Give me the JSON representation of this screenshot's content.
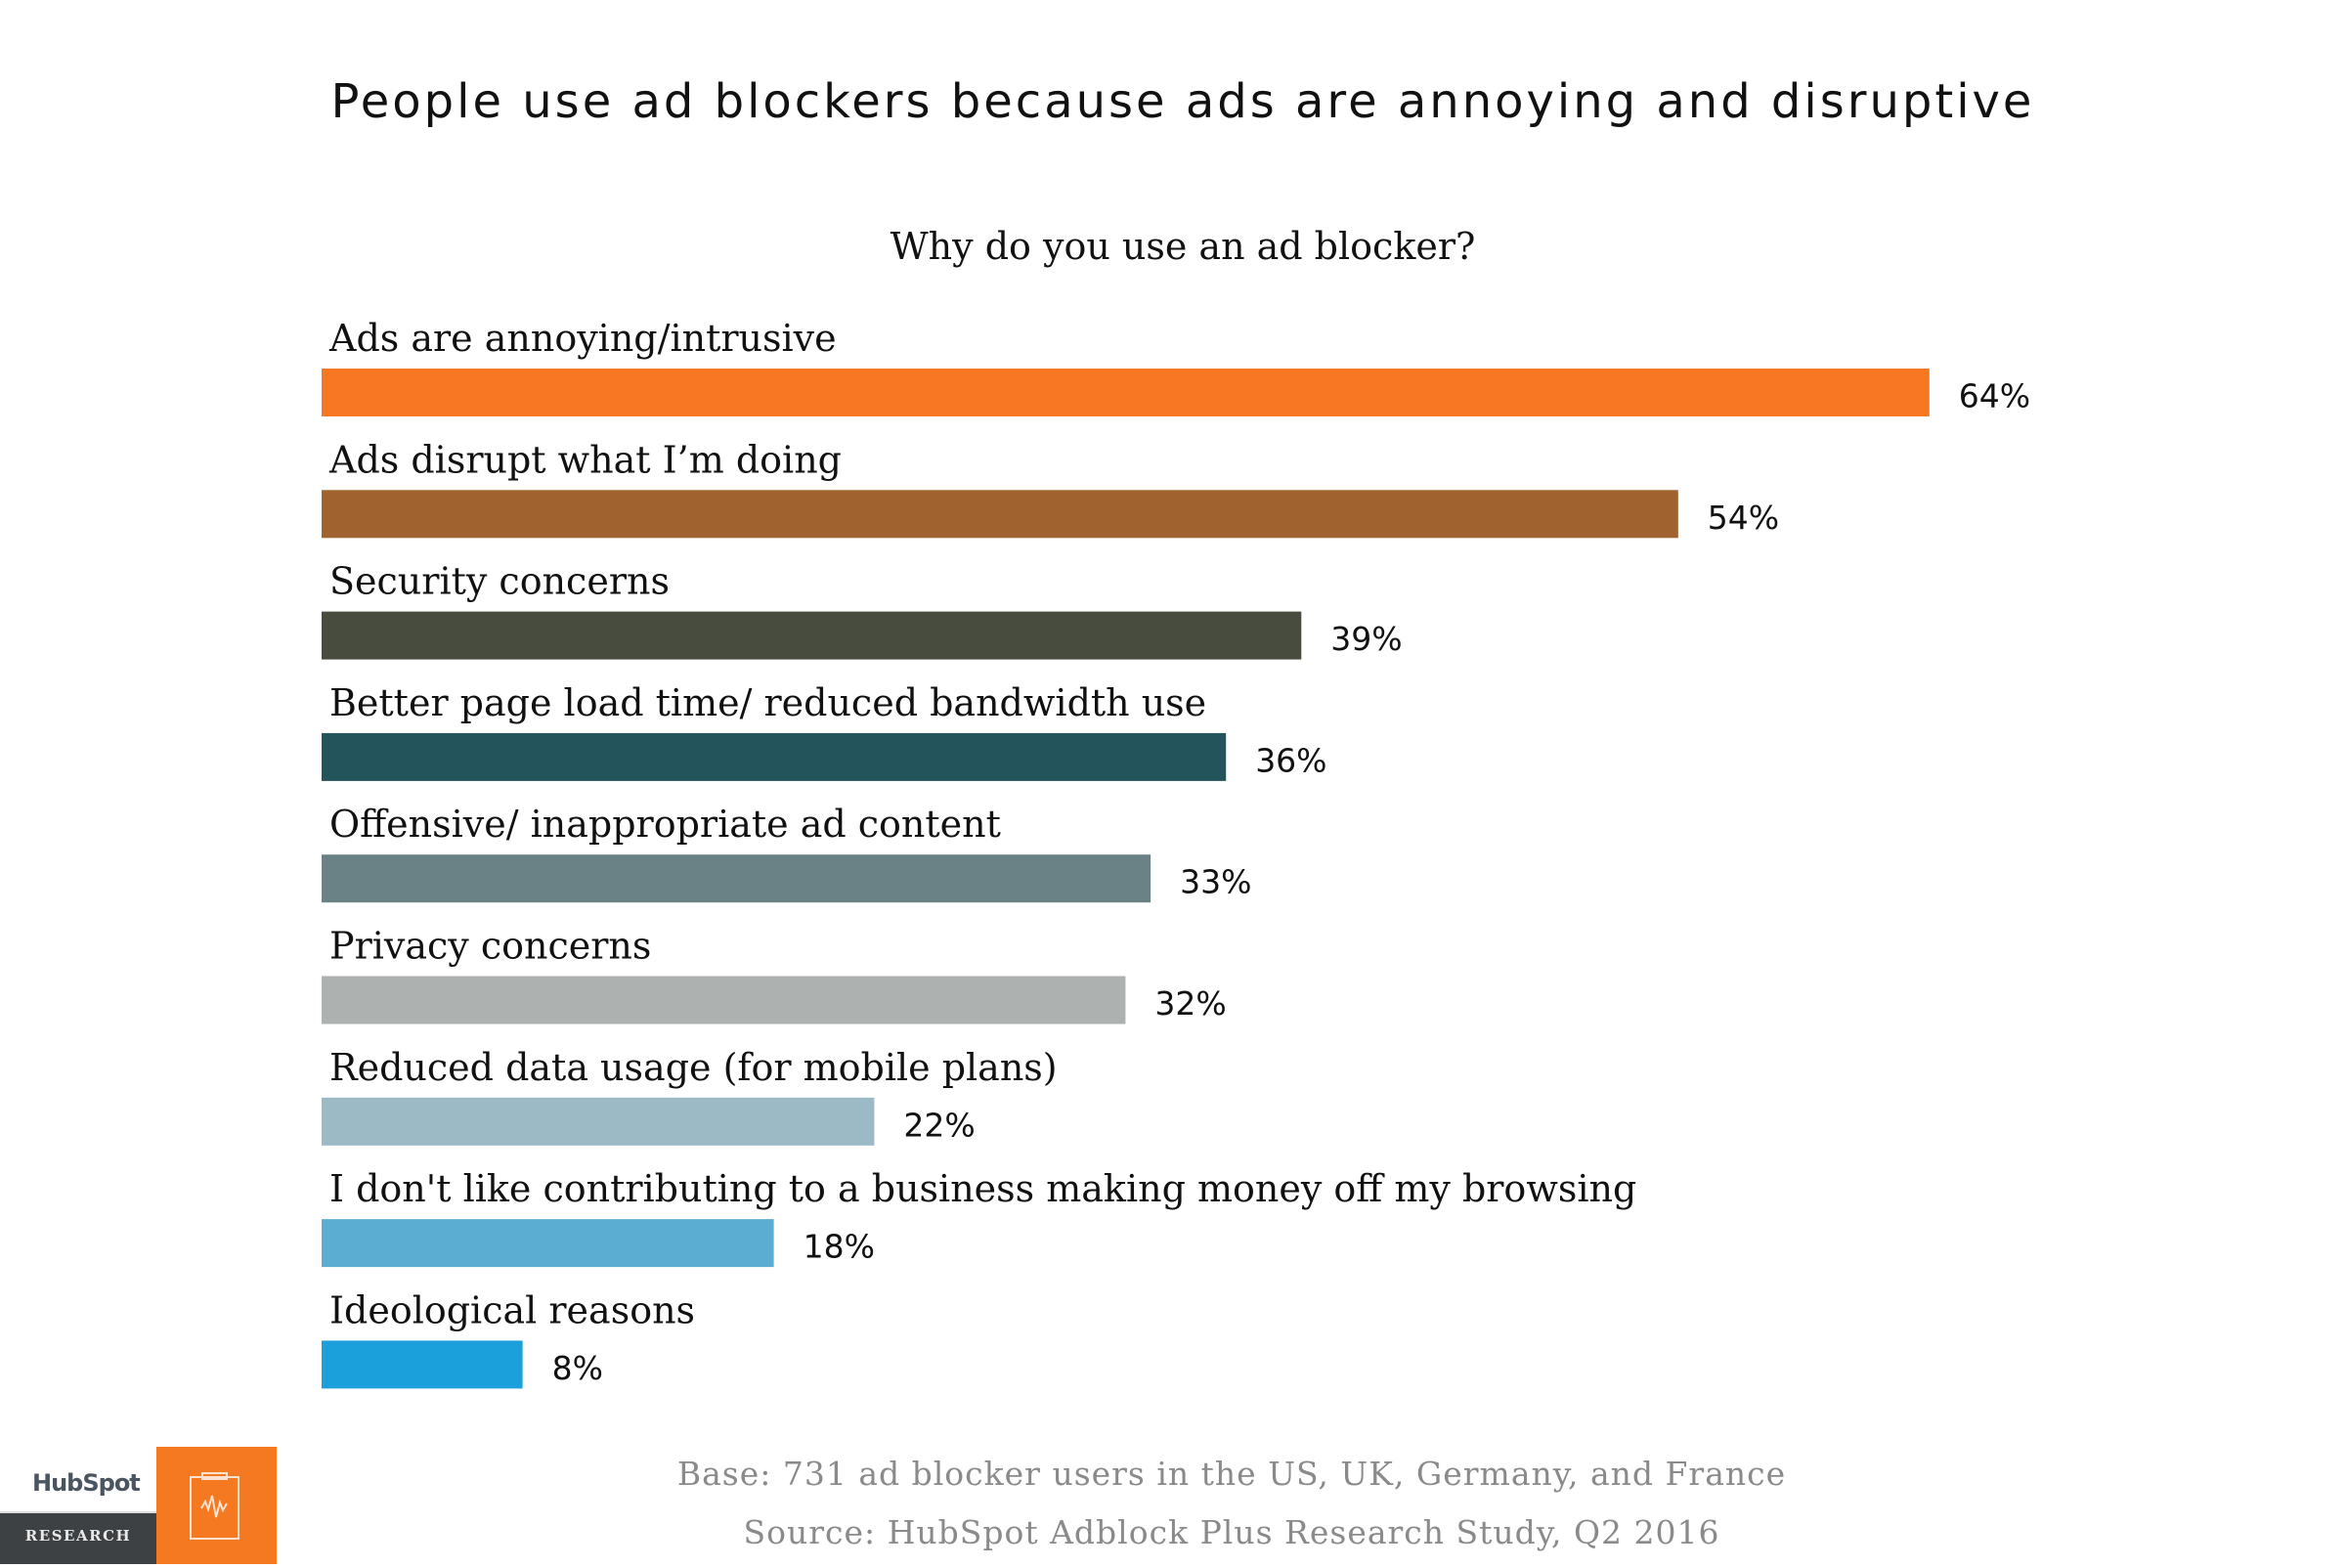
{
  "chart_data": {
    "type": "bar",
    "orientation": "horizontal",
    "title": "People use ad blockers because ads are annoying and disruptive",
    "subtitle": "Why do you use an ad blocker?",
    "categories": [
      "Ads are annoying/intrusive",
      "Ads disrupt what I’m doing",
      "Security concerns",
      "Better page load time/ reduced bandwidth use",
      "Offensive/ inappropriate ad content",
      "Privacy concerns",
      "Reduced data usage (for mobile plans)",
      "I don't like contributing to a business making money off my browsing",
      "Ideological reasons"
    ],
    "values": [
      64,
      54,
      39,
      36,
      33,
      32,
      22,
      18,
      8
    ],
    "value_labels": [
      "64%",
      "54%",
      "39%",
      "36%",
      "33%",
      "32%",
      "22%",
      "18%",
      "8%"
    ],
    "unit": "%",
    "colors": [
      "#F87722",
      "#A0632F",
      "#484C3F",
      "#23545B",
      "#6A8285",
      "#ADB2B1",
      "#9CB9C6",
      "#5CADD2",
      "#1CA0DB"
    ],
    "grid": false,
    "legend": "none"
  },
  "footer": {
    "base": "Base: 731 ad blocker users in the US, UK, Germany, and France",
    "source": "Source: HubSpot Adblock Plus Research Study, Q2 2016"
  },
  "logo": {
    "brand": "HubSpot",
    "tag": "RESEARCH",
    "icon": "clipboard-pulse-icon",
    "accent": "#F47920"
  }
}
